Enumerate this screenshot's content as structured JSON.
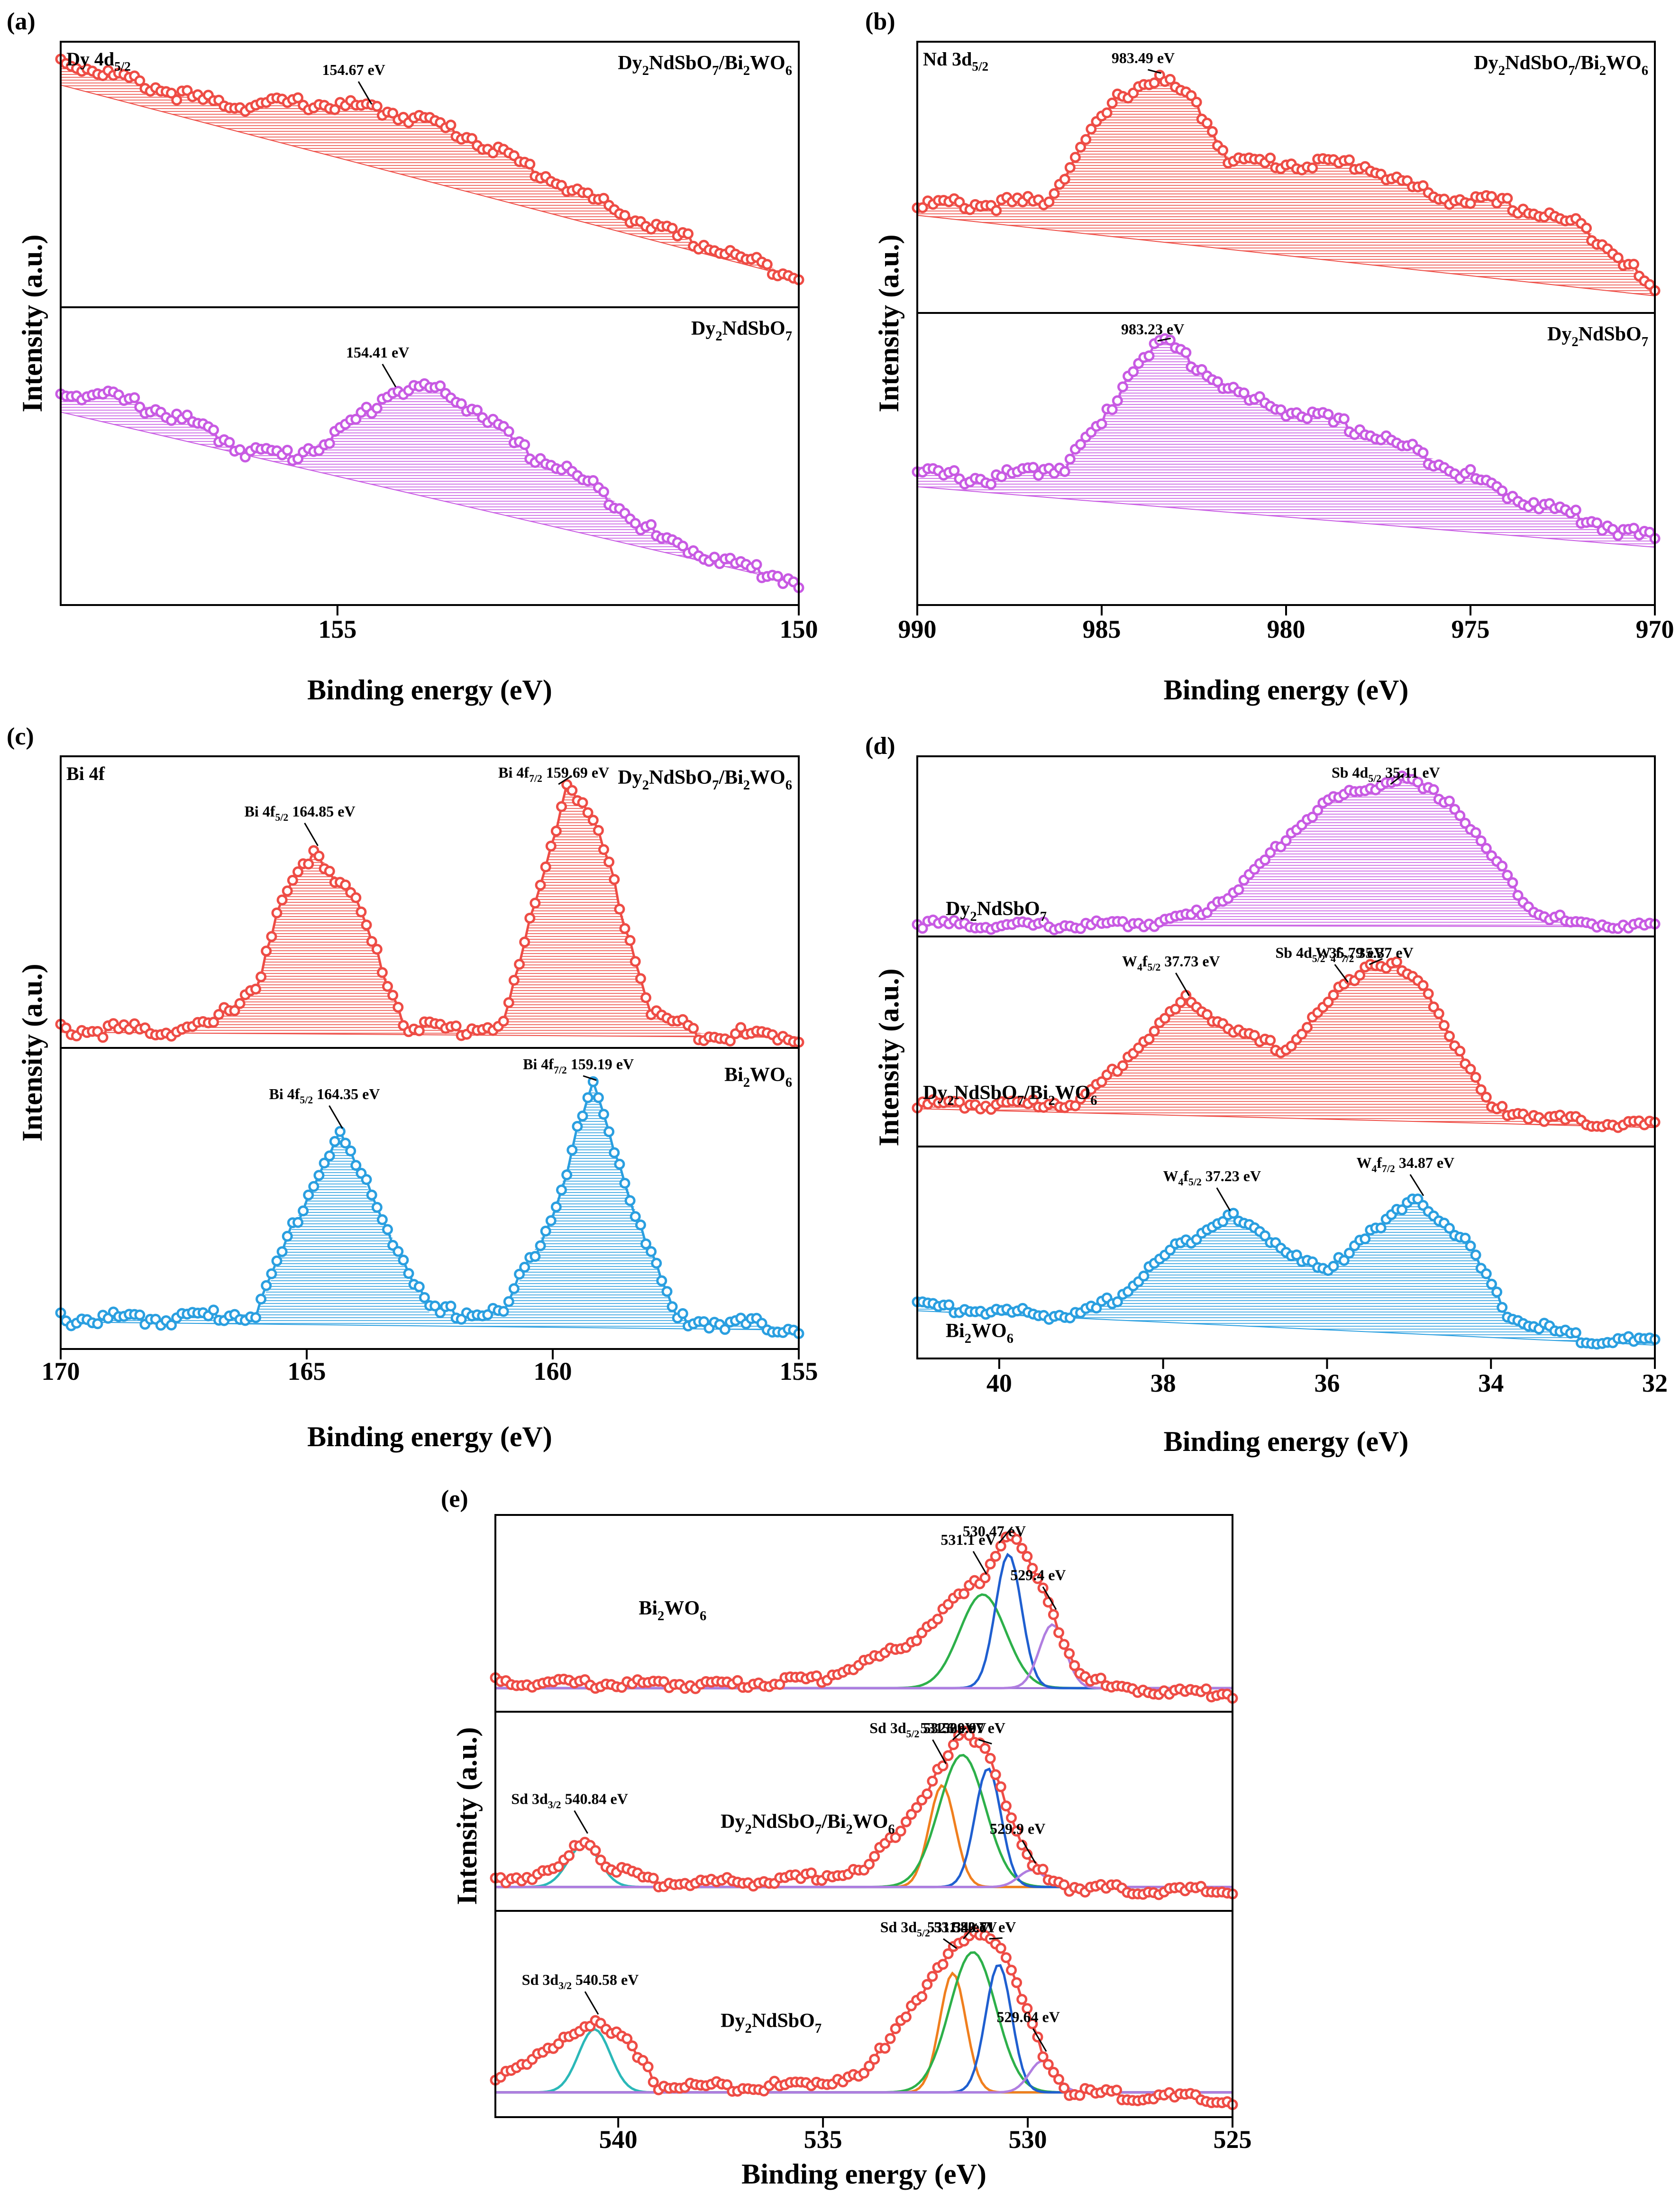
{
  "figure": {
    "x_axis_label": "Binding energy (eV)",
    "y_axis_label": "Intensity (a.u.)",
    "colors": {
      "red": "#ee4c45",
      "magenta": "#c85ae3",
      "blue": "#2a9fe0",
      "green": "#2db04a",
      "darkblue": "#1f5fd0",
      "orange": "#f07f1e",
      "violet": "#b07ee0",
      "teal": "#2bb8b8",
      "baseline": "#9b6fd6"
    }
  },
  "chart_data": [
    {
      "panel": "(a)",
      "type": "line",
      "title": "Dy 4d5/2",
      "xlim": [
        158,
        150
      ],
      "xticks": [
        155,
        150
      ],
      "xlabel": "Binding energy (eV)",
      "ylabel": "Intensity (a.u.)",
      "series": [
        {
          "name": "Dy2NdSbO7/Bi2WO6",
          "color": "red",
          "peak": 154.67,
          "peak_label": "154.67 eV",
          "x": [
            158,
            157.5,
            157,
            156.5,
            156,
            155.5,
            155,
            154.67,
            154.5,
            154,
            153.5,
            153,
            152.5,
            152,
            151.5,
            151,
            150.5,
            150
          ],
          "y": [
            0.93,
            0.88,
            0.83,
            0.78,
            0.76,
            0.77,
            0.76,
            0.75,
            0.74,
            0.7,
            0.63,
            0.54,
            0.45,
            0.37,
            0.29,
            0.23,
            0.17,
            0.12
          ]
        },
        {
          "name": "Dy2NdSbO7",
          "color": "magenta",
          "peak": 154.41,
          "peak_label": "154.41 eV",
          "x": [
            158,
            157.5,
            157,
            156.5,
            156,
            155.5,
            155,
            154.41,
            154,
            153.5,
            153,
            152.5,
            152,
            151.5,
            151,
            150.5,
            150
          ],
          "y": [
            0.72,
            0.7,
            0.66,
            0.6,
            0.52,
            0.5,
            0.57,
            0.72,
            0.73,
            0.66,
            0.52,
            0.45,
            0.35,
            0.22,
            0.17,
            0.12,
            0.08
          ]
        }
      ]
    },
    {
      "panel": "(b)",
      "type": "line",
      "title": "Nd 3d5/2",
      "xlim": [
        990,
        970
      ],
      "xticks": [
        990,
        985,
        980,
        975,
        970
      ],
      "xlabel": "Binding energy (eV)",
      "ylabel": "Intensity (a.u.)",
      "series": [
        {
          "name": "Dy2NdSbO7/Bi2WO6",
          "color": "red",
          "peak": 983.49,
          "peak_label": "983.49 eV",
          "x": [
            990,
            988,
            986.5,
            985.5,
            984.5,
            983.49,
            982.5,
            981.5,
            980,
            978,
            976,
            974,
            972,
            971,
            970
          ],
          "y": [
            0.4,
            0.4,
            0.41,
            0.62,
            0.8,
            0.87,
            0.78,
            0.56,
            0.55,
            0.55,
            0.43,
            0.4,
            0.32,
            0.22,
            0.07
          ]
        },
        {
          "name": "Dy2NdSbO7",
          "color": "magenta",
          "peak": 983.23,
          "peak_label": "983.23 eV",
          "x": [
            990,
            988,
            986,
            985,
            984,
            983.23,
            982,
            981,
            980,
            978,
            976,
            974,
            972,
            970
          ],
          "y": [
            0.45,
            0.43,
            0.48,
            0.62,
            0.85,
            0.9,
            0.78,
            0.7,
            0.67,
            0.6,
            0.5,
            0.38,
            0.3,
            0.22
          ]
        }
      ]
    },
    {
      "panel": "(c)",
      "type": "line",
      "title": "Bi 4f",
      "xlim": [
        170,
        155
      ],
      "xticks": [
        170,
        165,
        160,
        155
      ],
      "xlabel": "Binding energy (eV)",
      "ylabel": "Intensity (a.u.)",
      "series": [
        {
          "name": "Dy2NdSbO7/Bi2WO6",
          "color": "red",
          "peaks": [
            {
              "x": 164.85,
              "label": "Bi 4f5/2 164.85 eV"
            },
            {
              "x": 159.69,
              "label": "Bi 4f7/2 159.69 eV"
            }
          ],
          "x": [
            170,
            168,
            167,
            166,
            165.5,
            164.85,
            164,
            163,
            162,
            161,
            160.5,
            159.69,
            159,
            158,
            157,
            155
          ],
          "y": [
            0.06,
            0.06,
            0.07,
            0.22,
            0.5,
            0.68,
            0.5,
            0.08,
            0.06,
            0.08,
            0.4,
            0.92,
            0.7,
            0.12,
            0.05,
            0.04
          ]
        },
        {
          "name": "Bi2WO6",
          "color": "blue",
          "peaks": [
            {
              "x": 164.35,
              "label": "Bi 4f5/2 164.35 eV"
            },
            {
              "x": 159.19,
              "label": "Bi 4f7/2 159.19 eV"
            }
          ],
          "x": [
            170,
            168,
            166,
            165.3,
            164.35,
            163.5,
            162.5,
            161,
            160,
            159.19,
            158.3,
            157.5,
            156,
            155
          ],
          "y": [
            0.1,
            0.1,
            0.12,
            0.4,
            0.72,
            0.45,
            0.12,
            0.12,
            0.45,
            0.88,
            0.45,
            0.1,
            0.08,
            0.07
          ]
        }
      ]
    },
    {
      "panel": "(d)",
      "type": "line",
      "title": "",
      "xlim": [
        41,
        32
      ],
      "xticks": [
        40,
        38,
        36,
        34,
        32
      ],
      "xlabel": "Binding energy (eV)",
      "ylabel": "Intensity (a.u.)",
      "series": [
        {
          "name": "Dy2NdSbO7",
          "color": "magenta",
          "peaks": [
            {
              "x": 35.11,
              "label": "Sb 4d5/2 35.11 eV"
            }
          ],
          "x": [
            41,
            40,
            39,
            38,
            37.5,
            37,
            36.5,
            36,
            35.11,
            34.5,
            34,
            33.5,
            33,
            32
          ],
          "y": [
            0.07,
            0.06,
            0.06,
            0.08,
            0.14,
            0.3,
            0.55,
            0.75,
            0.88,
            0.75,
            0.45,
            0.15,
            0.07,
            0.06
          ]
        },
        {
          "name": "Dy2NdSbO7/Bi2WO6",
          "color": "red",
          "peaks": [
            {
              "x": 37.73,
              "label": "W4f5/2 37.73 eV"
            },
            {
              "x": 35.79,
              "label": "Sb 4d5/2 35.79 eV"
            },
            {
              "x": 35.37,
              "label": "W4f7/2 35.37 eV"
            }
          ],
          "x": [
            41,
            40,
            39,
            38.5,
            37.73,
            37,
            36.5,
            36,
            35.5,
            35.2,
            34.8,
            34.3,
            34,
            33,
            32
          ],
          "y": [
            0.2,
            0.2,
            0.21,
            0.4,
            0.7,
            0.52,
            0.46,
            0.68,
            0.88,
            0.87,
            0.75,
            0.4,
            0.18,
            0.12,
            0.1
          ]
        },
        {
          "name": "Bi2WO6",
          "color": "blue",
          "peaks": [
            {
              "x": 37.23,
              "label": "W4f5/2 37.23 eV"
            },
            {
              "x": 34.87,
              "label": "W4f7/2 34.87 eV"
            }
          ],
          "x": [
            41,
            40,
            39,
            38.5,
            38,
            37.23,
            36.5,
            36,
            35.5,
            34.87,
            34.3,
            33.8,
            33,
            32
          ],
          "y": [
            0.25,
            0.22,
            0.2,
            0.3,
            0.48,
            0.68,
            0.52,
            0.4,
            0.6,
            0.75,
            0.55,
            0.2,
            0.1,
            0.07
          ]
        }
      ]
    },
    {
      "panel": "(e)",
      "type": "line",
      "title": "",
      "xlim": [
        543,
        525
      ],
      "xticks": [
        540,
        535,
        530,
        525
      ],
      "xlabel": "Binding energy (eV)",
      "ylabel": "Intensity (a.u.)",
      "series": [
        {
          "name": "Bi2WO6",
          "color": "red",
          "components": [
            {
              "x": 531.1,
              "label": "531.1 eV",
              "color": "green"
            },
            {
              "x": 530.47,
              "label": "530.47 eV",
              "color": "darkblue"
            },
            {
              "x": 529.4,
              "label": "529.4 eV",
              "color": "violet"
            }
          ],
          "x": [
            543,
            540,
            537,
            535,
            533,
            532,
            531.1,
            530.47,
            530,
            529.4,
            528.8,
            528,
            526,
            525
          ],
          "y": [
            0.15,
            0.14,
            0.14,
            0.17,
            0.33,
            0.52,
            0.68,
            0.92,
            0.78,
            0.5,
            0.22,
            0.12,
            0.1,
            0.09
          ]
        },
        {
          "name": "Dy2NdSbO7/Bi2WO6",
          "color": "red",
          "components": [
            {
              "x": 540.84,
              "label": "Sd 3d3/2 540.84 eV",
              "color": "teal"
            },
            {
              "x": 532.09,
              "label": "Sd 3d5/2 532.09 eV",
              "color": "orange"
            },
            {
              "x": 531.6,
              "label": "531.6 eV",
              "color": "green"
            },
            {
              "x": 530.97,
              "label": "530.97 eV",
              "color": "darkblue"
            },
            {
              "x": 529.9,
              "label": "529.9 eV",
              "color": "violet"
            }
          ],
          "x": [
            543,
            541.5,
            540.84,
            540.2,
            539,
            536,
            534,
            533,
            532.09,
            531.6,
            530.97,
            530.3,
            529.9,
            529,
            527,
            525
          ],
          "y": [
            0.15,
            0.2,
            0.37,
            0.22,
            0.14,
            0.15,
            0.2,
            0.45,
            0.72,
            0.9,
            0.82,
            0.4,
            0.22,
            0.12,
            0.1,
            0.1
          ]
        },
        {
          "name": "Dy2NdSbO7",
          "color": "red",
          "components": [
            {
              "x": 540.58,
              "label": "Sd 3d3/2 540.58 eV",
              "color": "teal"
            },
            {
              "x": 531.83,
              "label": "Sd 3d5/2 531.83 eV",
              "color": "orange"
            },
            {
              "x": 531.34,
              "label": "531.34 eV",
              "color": "green"
            },
            {
              "x": 530.71,
              "label": "530.71 eV",
              "color": "darkblue"
            },
            {
              "x": 529.64,
              "label": "529.64 eV",
              "color": "violet"
            }
          ],
          "x": [
            543,
            541.5,
            540.58,
            539.8,
            539,
            536,
            534,
            533,
            531.83,
            531.34,
            530.71,
            530,
            529.64,
            529,
            527,
            525
          ],
          "y": [
            0.2,
            0.34,
            0.48,
            0.36,
            0.15,
            0.15,
            0.2,
            0.5,
            0.8,
            0.92,
            0.85,
            0.5,
            0.3,
            0.12,
            0.1,
            0.08
          ]
        }
      ]
    }
  ]
}
